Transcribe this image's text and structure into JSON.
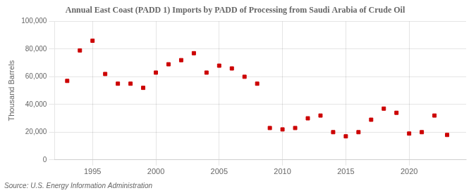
{
  "chart_data": {
    "type": "scatter",
    "title": "Annual East Coast (PADD 1) Imports by PADD of Processing from Saudi Arabia of Crude Oil",
    "ylabel": "Thousand Barrels",
    "source": "Source: U.S. Energy Information Administration",
    "color": "#cc0000",
    "marker": "square",
    "grid": true,
    "xlim": [
      1992,
      2024.5
    ],
    "ylim": [
      0,
      100000
    ],
    "xticks": [
      1995,
      2000,
      2005,
      2010,
      2015,
      2020
    ],
    "yticks": [
      0,
      {
        "value": 20000,
        "label": "20,000"
      },
      {
        "value": 40000,
        "label": "40,000"
      },
      {
        "value": 60000,
        "label": "60,000"
      },
      {
        "value": 80000,
        "label": "80,000"
      },
      {
        "value": 100000,
        "label": "100,000"
      }
    ],
    "x": [
      1993,
      1994,
      1995,
      1996,
      1997,
      1998,
      1999,
      2000,
      2001,
      2002,
      2003,
      2004,
      2005,
      2006,
      2007,
      2008,
      2009,
      2010,
      2011,
      2012,
      2013,
      2014,
      2015,
      2016,
      2017,
      2018,
      2019,
      2020,
      2021,
      2022,
      2023
    ],
    "values": [
      57000,
      79000,
      86000,
      62000,
      55000,
      55000,
      52000,
      63000,
      69000,
      72000,
      77000,
      63000,
      68000,
      66000,
      60000,
      55000,
      23000,
      22000,
      23000,
      30000,
      32000,
      20000,
      17000,
      20000,
      29000,
      37000,
      34000,
      19000,
      20000,
      32000,
      18000
    ]
  }
}
